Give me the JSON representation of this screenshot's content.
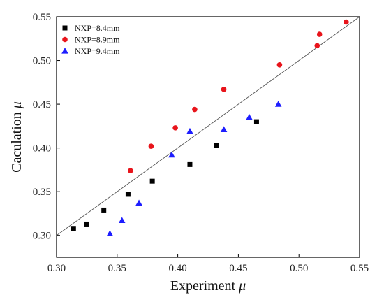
{
  "chart_data": {
    "type": "scatter",
    "xlabel": "Experiment",
    "xlabel_symbol": "μ",
    "ylabel": "Caculation",
    "ylabel_symbol": "μ",
    "xlim": [
      0.3,
      0.55
    ],
    "ylim": [
      0.275,
      0.55
    ],
    "xticks": [
      0.3,
      0.35,
      0.4,
      0.45,
      0.5,
      0.55
    ],
    "xtick_labels": [
      "0.30",
      "0.35",
      "0.40",
      "0.45",
      "0.50",
      "0.55"
    ],
    "yticks": [
      0.3,
      0.35,
      0.4,
      0.45,
      0.5,
      0.55
    ],
    "ytick_labels": [
      "0.30",
      "0.35",
      "0.40",
      "0.45",
      "0.50",
      "0.55"
    ],
    "grid": false,
    "legend_position": "top-left",
    "reference_line": {
      "type": "y=x",
      "color": "#555555"
    },
    "series": [
      {
        "name": "NXP=8.4mm",
        "marker": "square",
        "color": "#000000",
        "points": [
          [
            0.314,
            0.308
          ],
          [
            0.325,
            0.313
          ],
          [
            0.339,
            0.329
          ],
          [
            0.359,
            0.347
          ],
          [
            0.379,
            0.362
          ],
          [
            0.41,
            0.381
          ],
          [
            0.432,
            0.403
          ],
          [
            0.465,
            0.43
          ]
        ]
      },
      {
        "name": "NXP=8.9mm",
        "marker": "circle",
        "color": "#e8141b",
        "points": [
          [
            0.361,
            0.374
          ],
          [
            0.378,
            0.402
          ],
          [
            0.398,
            0.423
          ],
          [
            0.414,
            0.444
          ],
          [
            0.438,
            0.467
          ],
          [
            0.484,
            0.495
          ],
          [
            0.515,
            0.517
          ],
          [
            0.517,
            0.53
          ],
          [
            0.539,
            0.544
          ]
        ]
      },
      {
        "name": "NXP=9.4mm",
        "marker": "triangle",
        "color": "#1e1eff",
        "points": [
          [
            0.344,
            0.302
          ],
          [
            0.354,
            0.317
          ],
          [
            0.368,
            0.337
          ],
          [
            0.395,
            0.392
          ],
          [
            0.41,
            0.419
          ],
          [
            0.438,
            0.421
          ],
          [
            0.459,
            0.435
          ],
          [
            0.483,
            0.45
          ]
        ]
      }
    ]
  }
}
